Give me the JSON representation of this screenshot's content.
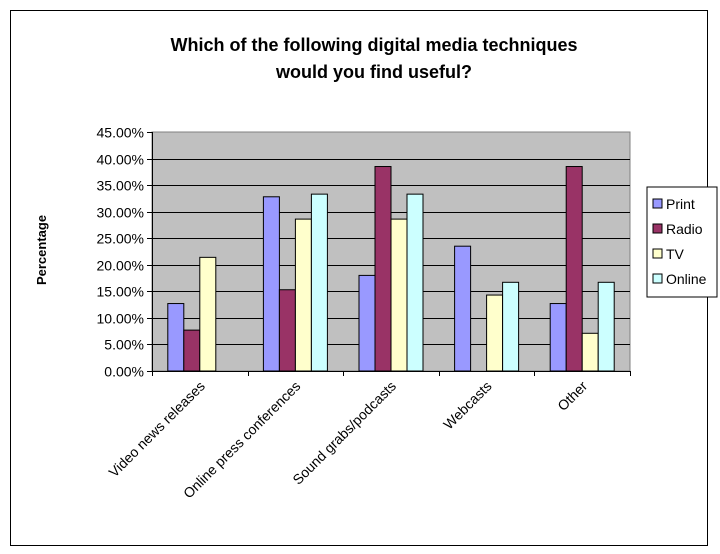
{
  "chart_data": {
    "type": "bar",
    "title": "Which of the following digital media techniques would you find useful?",
    "title_lines": [
      "Which of the following digital media techniques",
      "would you find useful?"
    ],
    "xlabel": "",
    "ylabel": "Percentage",
    "ylim": [
      0,
      45
    ],
    "yticks": [
      "0.00%",
      "5.00%",
      "10.00%",
      "15.00%",
      "20.00%",
      "25.00%",
      "30.00%",
      "35.00%",
      "40.00%",
      "45.00%"
    ],
    "categories": [
      "Video news releases",
      "Online press conferences",
      "Sound grabs/podcasts",
      "Webcasts",
      "Other"
    ],
    "series": [
      {
        "name": "Print",
        "color": "#9999FF",
        "values": [
          12.7,
          32.8,
          18.0,
          23.5,
          12.7
        ]
      },
      {
        "name": "Radio",
        "color": "#993366",
        "values": [
          7.7,
          15.3,
          38.5,
          0,
          38.5
        ]
      },
      {
        "name": "TV",
        "color": "#FFFFCC",
        "values": [
          21.4,
          28.6,
          28.6,
          14.3,
          7.1
        ]
      },
      {
        "name": "Online",
        "color": "#CCFFFF",
        "values": [
          0,
          33.3,
          33.3,
          16.7,
          16.7
        ]
      }
    ],
    "grid": true,
    "plot_background": "#C0C0C0",
    "legend": "right"
  }
}
